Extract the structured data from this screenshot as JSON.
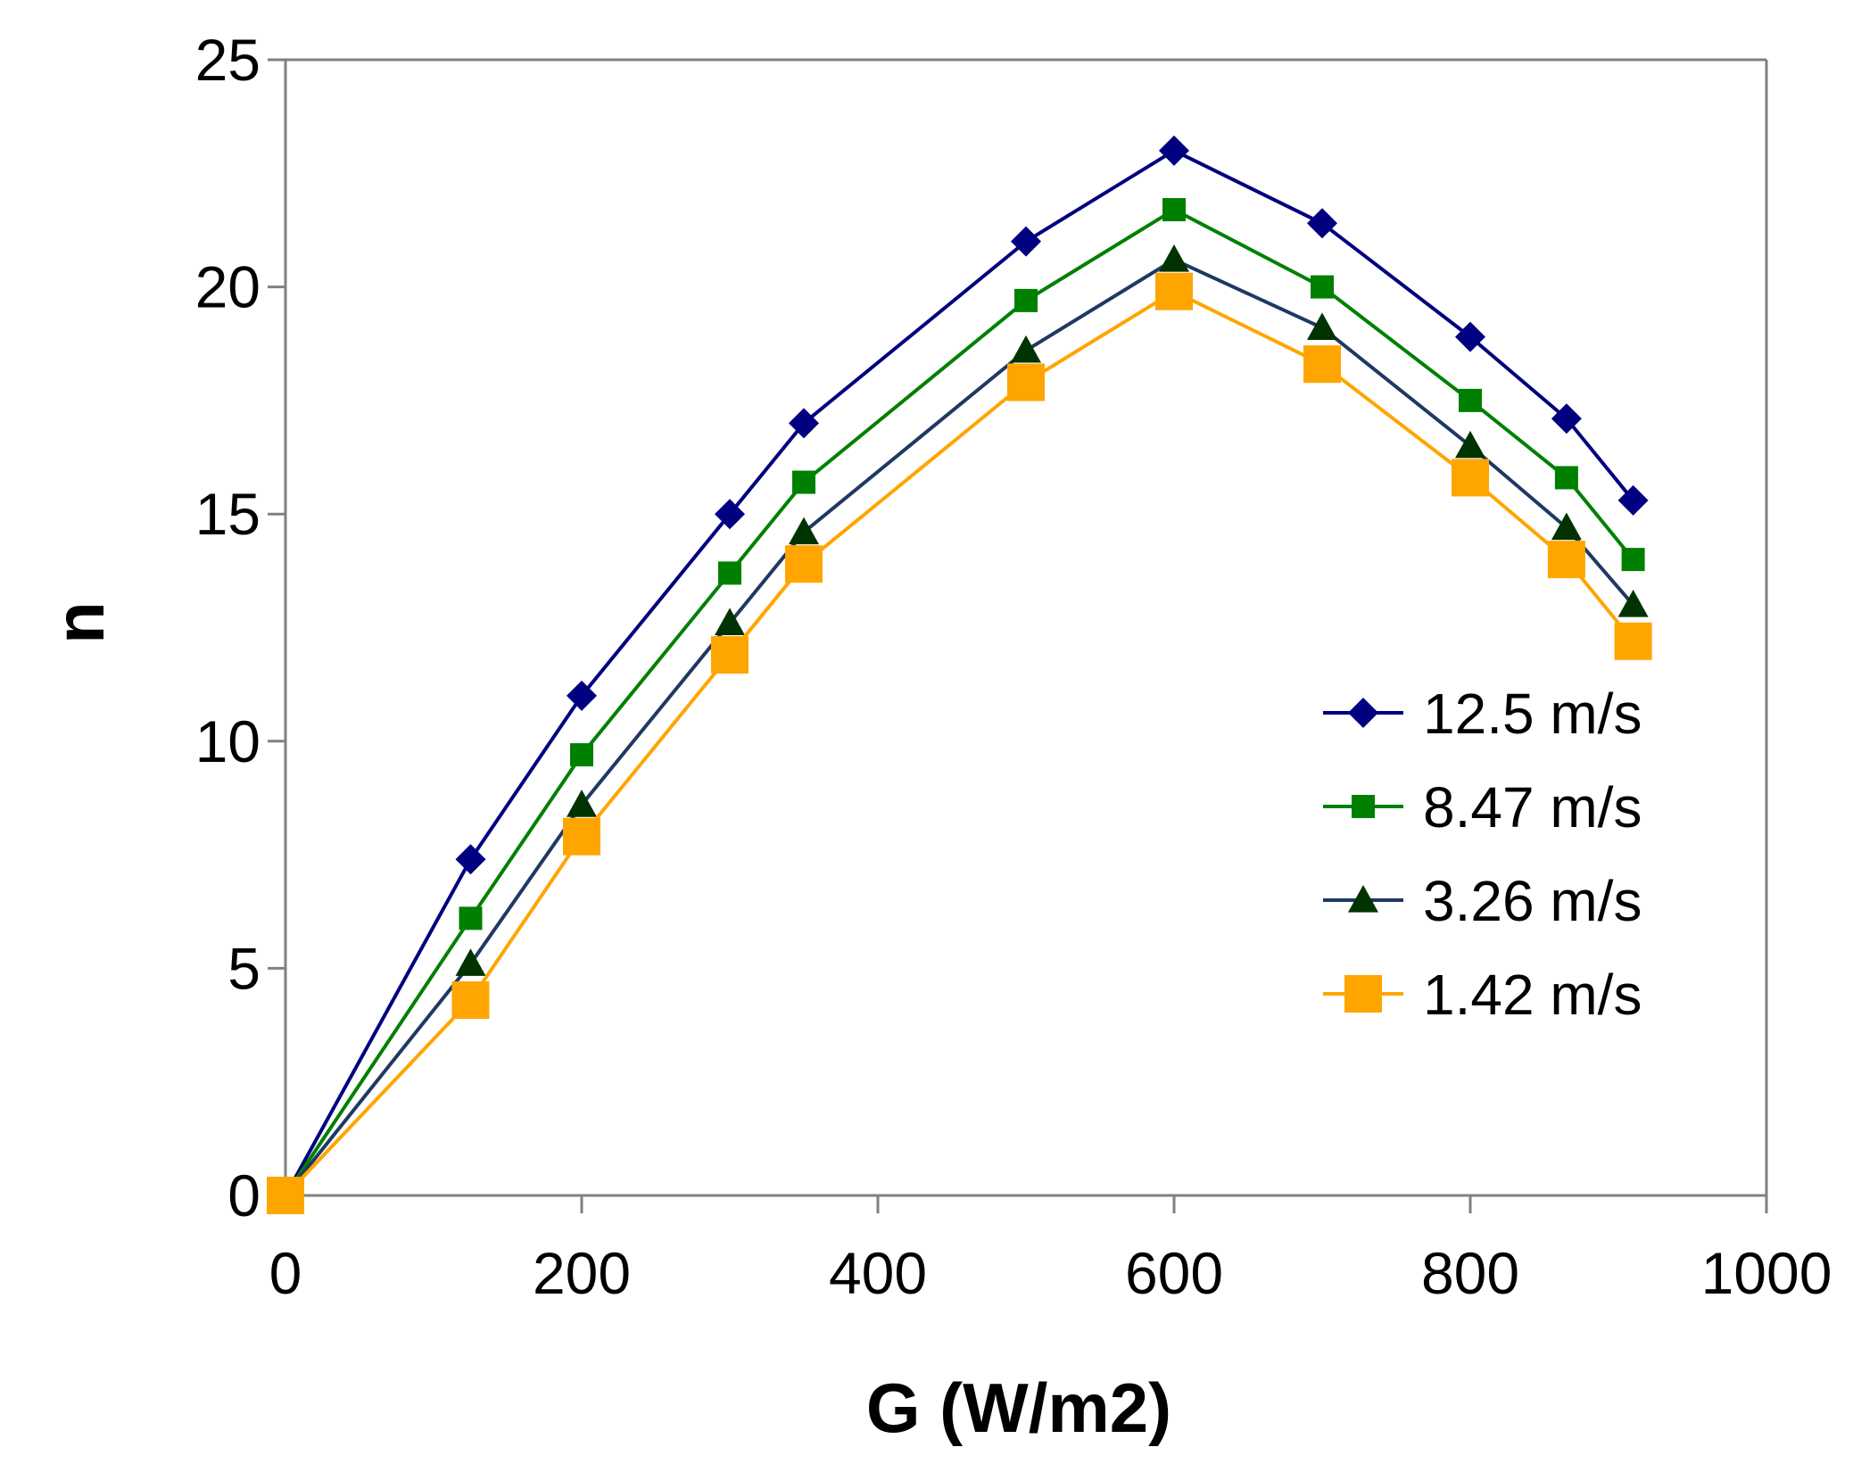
{
  "chart_data": {
    "type": "line",
    "title": "",
    "xlabel": "G (W/m2)",
    "ylabel": "n",
    "xlim": [
      0,
      1000
    ],
    "ylim": [
      0,
      25
    ],
    "xticks": [
      0,
      200,
      400,
      600,
      800,
      1000
    ],
    "yticks": [
      0,
      5,
      10,
      15,
      20,
      25
    ],
    "xtick_labels": [
      "0",
      "200",
      "400",
      "600",
      "800",
      "1000"
    ],
    "ytick_labels": [
      "0",
      "5",
      "10",
      "15",
      "20",
      "25"
    ],
    "grid": false,
    "legend_position": "right",
    "x": [
      0,
      125,
      200,
      300,
      350,
      500,
      600,
      700,
      800,
      865,
      910
    ],
    "series": [
      {
        "name": "12.5 m/s",
        "color": "#000080",
        "marker": "diamond",
        "values": [
          0,
          7.4,
          11.0,
          15.0,
          17.0,
          21.0,
          23.0,
          21.4,
          18.9,
          17.1,
          15.3
        ]
      },
      {
        "name": "8.47 m/s",
        "color": "#008000",
        "marker": "square",
        "values": [
          0,
          6.1,
          9.7,
          13.7,
          15.7,
          19.7,
          21.7,
          20.0,
          17.5,
          15.8,
          14.0
        ]
      },
      {
        "name": "3.26 m/s",
        "color": "#003300",
        "line_color": "#1f3864",
        "marker": "triangle",
        "values": [
          0,
          5.1,
          8.6,
          12.6,
          14.6,
          18.6,
          20.6,
          19.1,
          16.5,
          14.7,
          13.0
        ]
      },
      {
        "name": "1.42 m/s",
        "color": "#ffa500",
        "marker": "big-square",
        "values": [
          0,
          4.3,
          7.9,
          11.9,
          13.9,
          17.9,
          19.9,
          18.3,
          15.8,
          14.0,
          12.2
        ]
      }
    ]
  }
}
